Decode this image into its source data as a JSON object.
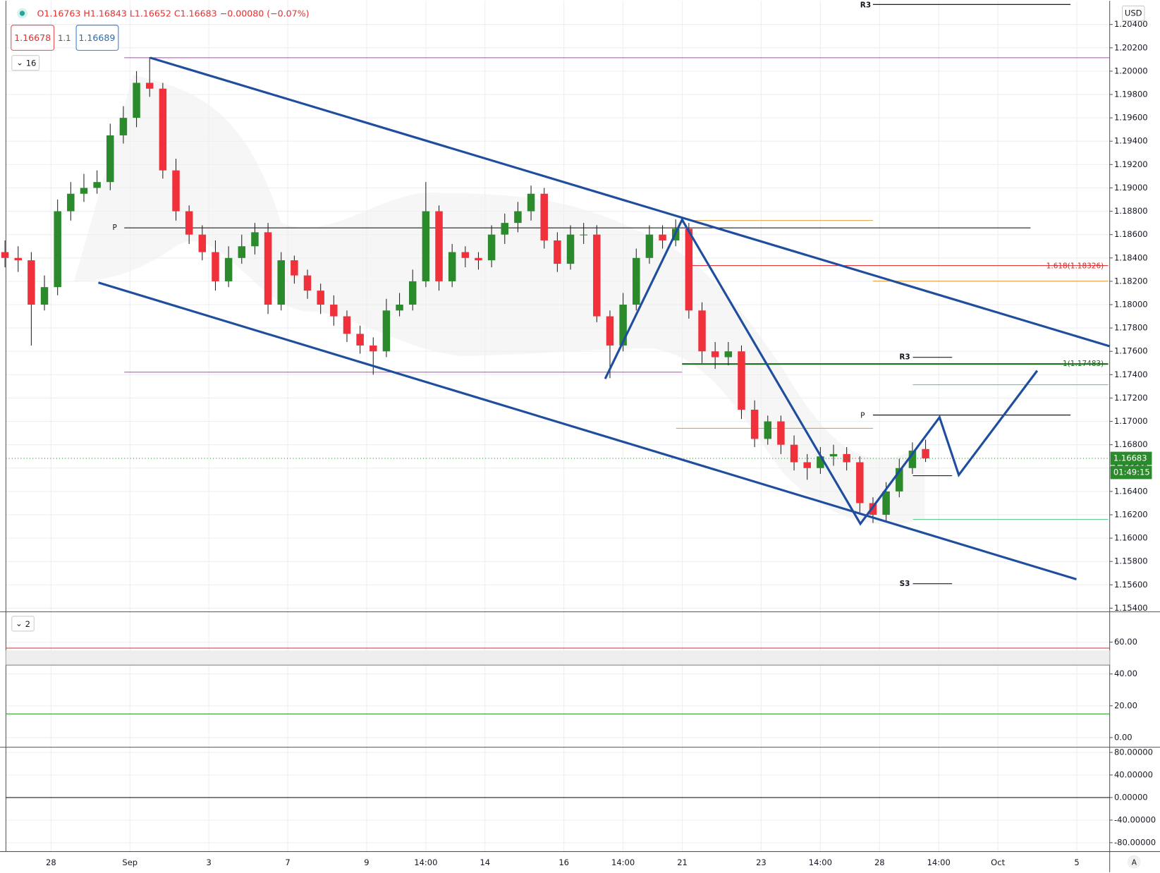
{
  "chart_data": {
    "type": "candlestick",
    "header": "O1.16763  H1.16843  L1.16652  C1.16683  −0.00080 (−0.07%)",
    "bid": "1.16678",
    "spread": "1.1",
    "ask": "1.16689",
    "indicator_count": "16",
    "currency": "USD",
    "last_price": 1.16683,
    "countdown": "01:49:15",
    "corner_label": "A",
    "up_color": "#2b8a2b",
    "down_color": "#f0313b",
    "grid": true,
    "x": [
      -7,
      -5,
      -3,
      -1,
      1,
      3,
      5,
      7,
      9,
      11,
      13,
      15,
      17,
      19,
      21,
      23,
      25,
      27,
      29,
      31,
      33,
      35,
      37,
      39,
      41,
      43,
      45,
      47,
      49,
      51,
      53,
      55,
      57,
      59,
      61,
      63,
      65,
      67,
      69,
      71,
      73,
      75,
      77,
      79,
      81,
      83,
      85,
      87,
      89,
      91,
      93,
      95,
      97,
      99,
      101,
      103,
      105,
      107,
      109,
      111,
      113,
      115,
      117,
      119,
      121,
      123,
      125,
      127,
      129,
      131,
      133
    ],
    "open": [
      1.1845,
      1.184,
      1.1838,
      1.18,
      1.1815,
      1.188,
      1.1895,
      1.19,
      1.1905,
      1.1945,
      1.196,
      1.199,
      1.1985,
      1.1915,
      1.188,
      1.186,
      1.1845,
      1.182,
      1.184,
      1.185,
      1.1862,
      1.18,
      1.1838,
      1.1825,
      1.1812,
      1.18,
      1.179,
      1.1775,
      1.1765,
      1.176,
      1.1795,
      1.18,
      1.182,
      1.188,
      1.182,
      1.1845,
      1.184,
      1.1838,
      1.186,
      1.187,
      1.188,
      1.1895,
      1.1855,
      1.1835,
      1.186,
      1.186,
      1.179,
      1.1765,
      1.18,
      1.184,
      1.186,
      1.1855,
      1.1865,
      1.1795,
      1.176,
      1.1755,
      1.176,
      1.171,
      1.1685,
      1.17,
      1.168,
      1.1665,
      1.166,
      1.167,
      1.1672,
      1.1665,
      1.163,
      1.162,
      1.164,
      1.166,
      1.16763
    ],
    "high": [
      1.1855,
      1.185,
      1.1845,
      1.1825,
      1.189,
      1.1905,
      1.1912,
      1.1915,
      1.1955,
      1.197,
      1.2,
      1.2012,
      1.199,
      1.1925,
      1.1885,
      1.1868,
      1.1855,
      1.185,
      1.186,
      1.187,
      1.187,
      1.1845,
      1.1842,
      1.183,
      1.1818,
      1.1808,
      1.1795,
      1.1782,
      1.1772,
      1.1805,
      1.181,
      1.183,
      1.1905,
      1.1885,
      1.1852,
      1.185,
      1.1845,
      1.1868,
      1.1878,
      1.1888,
      1.1902,
      1.19,
      1.1862,
      1.1868,
      1.187,
      1.1868,
      1.1795,
      1.181,
      1.1848,
      1.1868,
      1.1868,
      1.1873,
      1.187,
      1.1802,
      1.1768,
      1.1768,
      1.1765,
      1.1718,
      1.1705,
      1.1705,
      1.1688,
      1.1672,
      1.1678,
      1.168,
      1.1678,
      1.167,
      1.1635,
      1.1648,
      1.1668,
      1.1682,
      1.16843
    ],
    "low": [
      1.1832,
      1.1828,
      1.1765,
      1.1795,
      1.1808,
      1.1872,
      1.1888,
      1.1895,
      1.1898,
      1.1938,
      1.1952,
      1.1978,
      1.1908,
      1.1872,
      1.1852,
      1.1838,
      1.1812,
      1.1815,
      1.1835,
      1.1843,
      1.1792,
      1.1795,
      1.1818,
      1.1805,
      1.1792,
      1.1782,
      1.1768,
      1.1758,
      1.174,
      1.1755,
      1.179,
      1.1795,
      1.1815,
      1.1812,
      1.1815,
      1.1832,
      1.183,
      1.1832,
      1.1852,
      1.1862,
      1.1872,
      1.1848,
      1.1828,
      1.183,
      1.1852,
      1.1785,
      1.1737,
      1.176,
      1.1795,
      1.1835,
      1.1848,
      1.185,
      1.1788,
      1.175,
      1.1745,
      1.1748,
      1.1702,
      1.1678,
      1.168,
      1.1672,
      1.1658,
      1.165,
      1.1655,
      1.1662,
      1.1658,
      1.1622,
      1.1613,
      1.1615,
      1.1635,
      1.1655,
      1.16652
    ],
    "close": [
      1.184,
      1.1838,
      1.18,
      1.1815,
      1.188,
      1.1895,
      1.19,
      1.1905,
      1.1945,
      1.196,
      1.199,
      1.1985,
      1.1915,
      1.188,
      1.186,
      1.1845,
      1.182,
      1.184,
      1.185,
      1.1862,
      1.18,
      1.1838,
      1.1825,
      1.1812,
      1.18,
      1.179,
      1.1775,
      1.1765,
      1.176,
      1.1795,
      1.18,
      1.182,
      1.188,
      1.182,
      1.1845,
      1.184,
      1.1838,
      1.186,
      1.187,
      1.188,
      1.1895,
      1.1855,
      1.1835,
      1.186,
      1.186,
      1.179,
      1.1765,
      1.18,
      1.184,
      1.186,
      1.1855,
      1.1865,
      1.1795,
      1.176,
      1.1755,
      1.176,
      1.171,
      1.1685,
      1.17,
      1.168,
      1.1665,
      1.166,
      1.167,
      1.1672,
      1.1665,
      1.163,
      1.162,
      1.164,
      1.166,
      1.1675,
      1.16683
    ],
    "xlim": [
      -6.86,
      161
    ],
    "xticks": [
      {
        "value": 0,
        "label": "28"
      },
      {
        "value": 12,
        "label": "Sep"
      },
      {
        "value": 24,
        "label": "3"
      },
      {
        "value": 36,
        "label": "7"
      },
      {
        "value": 48,
        "label": "9"
      },
      {
        "value": 57,
        "label": "14:00"
      },
      {
        "value": 66,
        "label": "14"
      },
      {
        "value": 78,
        "label": "16"
      },
      {
        "value": 87,
        "label": "14:00"
      },
      {
        "value": 96,
        "label": "21"
      },
      {
        "value": 108,
        "label": "23"
      },
      {
        "value": 117,
        "label": "14:00"
      },
      {
        "value": 126,
        "label": "28"
      },
      {
        "value": 135,
        "label": "14:00"
      },
      {
        "value": 144,
        "label": "Oct"
      },
      {
        "value": 156,
        "label": "5"
      }
    ],
    "ylim": [
      1.15375,
      1.20603
    ],
    "yticks": [
      {
        "value": 1.204,
        "label": "1.20400"
      },
      {
        "value": 1.202,
        "label": "1.20200"
      },
      {
        "value": 1.2,
        "label": "1.20000"
      },
      {
        "value": 1.198,
        "label": "1.19800"
      },
      {
        "value": 1.196,
        "label": "1.19600"
      },
      {
        "value": 1.194,
        "label": "1.19400"
      },
      {
        "value": 1.192,
        "label": "1.19200"
      },
      {
        "value": 1.19,
        "label": "1.19000"
      },
      {
        "value": 1.188,
        "label": "1.18800"
      },
      {
        "value": 1.186,
        "label": "1.18600"
      },
      {
        "value": 1.184,
        "label": "1.18400"
      },
      {
        "value": 1.182,
        "label": "1.18200"
      },
      {
        "value": 1.18,
        "label": "1.18000"
      },
      {
        "value": 1.178,
        "label": "1.17800"
      },
      {
        "value": 1.176,
        "label": "1.17600"
      },
      {
        "value": 1.174,
        "label": "1.17400"
      },
      {
        "value": 1.172,
        "label": "1.17200"
      },
      {
        "value": 1.17,
        "label": "1.17000"
      },
      {
        "value": 1.168,
        "label": "1.16800"
      },
      {
        "value": 1.166,
        "label": "1.16600"
      },
      {
        "value": 1.164,
        "label": "1.16400"
      },
      {
        "value": 1.162,
        "label": "1.16200"
      },
      {
        "value": 1.16,
        "label": "1.16000"
      },
      {
        "value": 1.158,
        "label": "1.15800"
      },
      {
        "value": 1.156,
        "label": "1.15600"
      },
      {
        "value": 1.154,
        "label": "1.15400"
      }
    ],
    "annotations": [
      "R3",
      "P",
      "1.618(1.18326)",
      "R3",
      "1(1.17483)",
      "P",
      "S3"
    ],
    "panes": [
      {
        "indicator_count": "2",
        "ylim": [
          -5.6,
          78.6
        ],
        "yticks": [
          {
            "value": 60,
            "label": "60.00"
          },
          {
            "value": 40,
            "label": "40.00"
          },
          {
            "value": 20,
            "label": "20.00"
          },
          {
            "value": 0,
            "label": "0.00"
          }
        ]
      },
      {
        "ylim": [
          -95.7,
          87.9
        ],
        "yticks": [
          {
            "value": 80,
            "label": "80.00000"
          },
          {
            "value": 40,
            "label": "40.00000"
          },
          {
            "value": 0,
            "label": "0.00000"
          },
          {
            "value": -40,
            "label": "-40.00000"
          },
          {
            "value": -80,
            "label": "-80.00000"
          }
        ]
      }
    ]
  }
}
